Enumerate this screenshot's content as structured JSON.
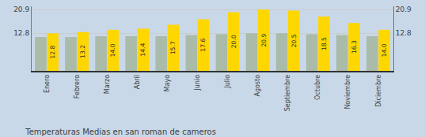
{
  "chart_data": {
    "type": "bar",
    "title": "Temperaturas Medias en san roman de cameros",
    "categories": [
      "Enero",
      "Febrero",
      "Marzo",
      "Abril",
      "Mayo",
      "Junio",
      "Julio",
      "Agosto",
      "Septiembre",
      "Octubre",
      "Noviembre",
      "Diciembre"
    ],
    "series": [
      {
        "color": "#AABBAA",
        "values": [
          11.5,
          11.5,
          11.8,
          11.8,
          11.8,
          12.2,
          12.5,
          12.8,
          12.8,
          12.5,
          12.2,
          11.8
        ]
      },
      {
        "color": "#FFD700",
        "values": [
          12.8,
          13.2,
          14.0,
          14.4,
          15.7,
          17.6,
          20.0,
          20.9,
          20.5,
          18.5,
          16.3,
          14.0
        ],
        "value_labels": [
          "12.8",
          "13.2",
          "14.0",
          "14.4",
          "15.7",
          "17.6",
          "20.0",
          "20.9",
          "20.5",
          "18.5",
          "16.3",
          "14.0"
        ],
        "data_labels": true
      }
    ],
    "ylim": [
      0,
      22.0
    ],
    "yticks": [
      12.8,
      20.9
    ],
    "y2lim": [
      0,
      22.0
    ],
    "y2ticks": [
      12.8,
      20.9
    ],
    "grid": true
  }
}
